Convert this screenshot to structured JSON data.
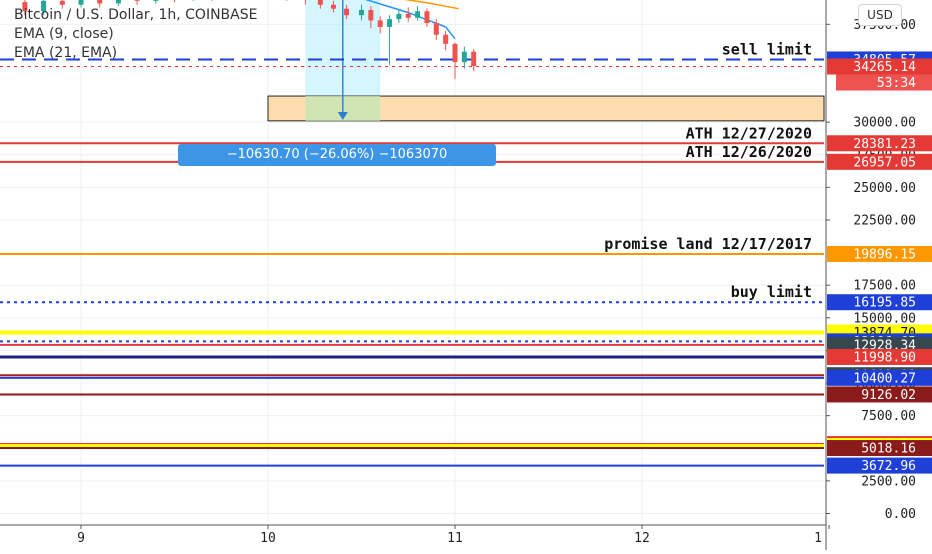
{
  "legend": {
    "title": "Bitcoin / U.S. Dollar, 1h, COINBASE",
    "ema9": "EMA (9, close)",
    "ema21": "EMA (21, EMA)"
  },
  "currency_button": "USD",
  "measure_label": "−10630.70 (−26.06%) −1063070",
  "colors": {
    "up": "#26a69a",
    "down": "#ef5350",
    "red": "#e53935",
    "dark_red": "#b71c1c",
    "blue": "#1e3fd8",
    "navy": "#1a237e",
    "orange": "#ff9800",
    "yellow": "#ffff00",
    "dark_gray": "#37474f",
    "maroon": "#8b1a1a"
  },
  "chart_data": {
    "type": "line",
    "title": "Bitcoin / U.S. Dollar, 1h, COINBASE",
    "xlabel": "",
    "ylabel": "",
    "ylim": [
      -1200,
      40000
    ],
    "grid": true,
    "x_ticks": [
      "9",
      "10",
      "11",
      "12",
      "1"
    ],
    "y_ticks": [
      {
        "value": 37500,
        "label": "37500.00"
      },
      {
        "value": 30000,
        "label": "30000.00"
      },
      {
        "value": 27500,
        "label": "27500.00"
      },
      {
        "value": 25000,
        "label": "25000.00"
      },
      {
        "value": 22500,
        "label": "22500.00"
      },
      {
        "value": 17500,
        "label": "17500.00"
      },
      {
        "value": 15000,
        "label": "15000.00"
      },
      {
        "value": 12500,
        "label": "12500.00"
      },
      {
        "value": 10000,
        "label": "10000.00"
      },
      {
        "value": 7500,
        "label": "7500.00"
      },
      {
        "value": 2500,
        "label": "2500.00"
      },
      {
        "value": 0,
        "label": "0.00"
      }
    ],
    "horizontal_lines": [
      {
        "price": 34805.57,
        "label": "34805.57",
        "color": "blue",
        "style": "dashed",
        "tag": "blue",
        "annotation": "sell limit"
      },
      {
        "price": 34265.14,
        "label": "34265.14",
        "color": "red",
        "style": "dotted",
        "tag": "red"
      },
      {
        "price": 28381.23,
        "label": "28381.23",
        "color": "red",
        "style": "solid",
        "tag": "red",
        "annotation": "ATH 12/27/2020"
      },
      {
        "price": 26957.05,
        "label": "26957.05",
        "color": "red",
        "style": "solid",
        "tag": "red",
        "annotation": "ATH 12/26/2020"
      },
      {
        "price": 19896.15,
        "label": "19896.15",
        "color": "orange",
        "style": "solid",
        "tag": "orange",
        "annotation": "promise land 12/17/2017"
      },
      {
        "price": 16195.85,
        "label": "16195.85",
        "color": "blue",
        "style": "dotted",
        "tag": "blue",
        "annotation": "buy limit"
      },
      {
        "price": 13874.7,
        "label": "13874.70",
        "color": "yellow",
        "style": "solid",
        "tag": "yellow"
      },
      {
        "price": 13196.65,
        "label": "13196.65",
        "color": "blue",
        "style": "dotted",
        "tag": "blue"
      },
      {
        "price": 12928.34,
        "label": "12928.34",
        "color": "red",
        "style": "solid",
        "tag": "dark_gray"
      },
      {
        "price": 11998.9,
        "label": "11998.90",
        "color": "navy",
        "style": "solid",
        "tag": "red"
      },
      {
        "price": 10602.01,
        "label": "10602.01",
        "color": "dark_red",
        "style": "solid",
        "tag": "dark_gray"
      },
      {
        "price": 10400.27,
        "label": "10400.27",
        "color": "blue",
        "style": "solid",
        "tag": "blue"
      },
      {
        "price": 9126.02,
        "label": "9126.02",
        "color": "maroon",
        "style": "solid",
        "tag": "maroon"
      },
      {
        "price": 5322.98,
        "label": "5322.98",
        "color": "red",
        "style": "solid",
        "tag": "red"
      },
      {
        "price": 5175.44,
        "label": "5175.44",
        "color": "yellow",
        "style": "solid",
        "tag": "yellow"
      },
      {
        "price": 5018.16,
        "label": "5018.16",
        "color": "maroon",
        "style": "solid",
        "tag": "maroon"
      },
      {
        "price": 3672.96,
        "label": "3672.96",
        "color": "blue",
        "style": "solid",
        "tag": "blue"
      }
    ],
    "countdown_label": "53:34",
    "series": [
      {
        "name": "EMA (9, close)",
        "color": "#2196f3",
        "points": [
          [
            9.5,
            39500
          ],
          [
            9.9,
            39950
          ],
          [
            10.2,
            40100
          ],
          [
            10.5,
            39500
          ],
          [
            10.75,
            38400
          ],
          [
            10.95,
            37300
          ],
          [
            11.0,
            36400
          ]
        ]
      },
      {
        "name": "EMA (21, EMA)",
        "color": "#ff9800",
        "points": [
          [
            9.3,
            39400
          ],
          [
            9.7,
            39900
          ],
          [
            10.0,
            40100
          ],
          [
            10.3,
            40000
          ],
          [
            10.6,
            39700
          ],
          [
            10.85,
            39150
          ],
          [
            11.02,
            38700
          ]
        ]
      }
    ],
    "candles": [
      {
        "x": 8.7,
        "o": 39200,
        "c": 38500,
        "h": 39600,
        "l": 38200
      },
      {
        "x": 8.8,
        "o": 38500,
        "c": 39300,
        "h": 39800,
        "l": 38200
      },
      {
        "x": 8.9,
        "o": 39300,
        "c": 39000,
        "h": 39700,
        "l": 38700
      },
      {
        "x": 9.0,
        "o": 39000,
        "c": 39600,
        "h": 39900,
        "l": 38800
      },
      {
        "x": 9.1,
        "o": 39600,
        "c": 39100,
        "h": 39900,
        "l": 38800
      },
      {
        "x": 9.2,
        "o": 39100,
        "c": 39700,
        "h": 40000,
        "l": 38900
      },
      {
        "x": 9.3,
        "o": 39700,
        "c": 39300,
        "h": 40000,
        "l": 39000
      },
      {
        "x": 9.4,
        "o": 39300,
        "c": 39800,
        "h": 40000,
        "l": 39100
      },
      {
        "x": 9.5,
        "o": 39800,
        "c": 39500,
        "h": 40000,
        "l": 39200
      },
      {
        "x": 9.6,
        "o": 39500,
        "c": 39900,
        "h": 40000,
        "l": 39300
      },
      {
        "x": 9.7,
        "o": 39900,
        "c": 39600,
        "h": 40000,
        "l": 39300
      },
      {
        "x": 9.8,
        "o": 39600,
        "c": 39950,
        "h": 40000,
        "l": 39400
      },
      {
        "x": 9.9,
        "o": 39950,
        "c": 39700,
        "h": 40000,
        "l": 39500
      },
      {
        "x": 10.0,
        "o": 39700,
        "c": 39900,
        "h": 40000,
        "l": 39500
      },
      {
        "x": 10.1,
        "o": 39900,
        "c": 39600,
        "h": 40000,
        "l": 39300
      },
      {
        "x": 10.2,
        "o": 39600,
        "c": 39400,
        "h": 39800,
        "l": 39000
      },
      {
        "x": 10.28,
        "o": 39400,
        "c": 39000,
        "h": 39600,
        "l": 38700
      },
      {
        "x": 10.35,
        "o": 39000,
        "c": 38700,
        "h": 39300,
        "l": 38400
      },
      {
        "x": 10.42,
        "o": 38700,
        "c": 38200,
        "h": 39000,
        "l": 37900
      },
      {
        "x": 10.5,
        "o": 38200,
        "c": 38600,
        "h": 39000,
        "l": 37800
      },
      {
        "x": 10.55,
        "o": 38600,
        "c": 37800,
        "h": 38900,
        "l": 37200
      },
      {
        "x": 10.6,
        "o": 37800,
        "c": 37300,
        "h": 38100,
        "l": 36800
      },
      {
        "x": 10.65,
        "o": 37300,
        "c": 37900,
        "h": 38200,
        "l": 34400
      },
      {
        "x": 10.7,
        "o": 37900,
        "c": 38300,
        "h": 38700,
        "l": 37600
      },
      {
        "x": 10.75,
        "o": 38300,
        "c": 38000,
        "h": 38800,
        "l": 37700
      },
      {
        "x": 10.8,
        "o": 38000,
        "c": 38500,
        "h": 38900,
        "l": 37800
      },
      {
        "x": 10.85,
        "o": 38500,
        "c": 37600,
        "h": 38700,
        "l": 37300
      },
      {
        "x": 10.9,
        "o": 37600,
        "c": 36700,
        "h": 37900,
        "l": 36300
      },
      {
        "x": 10.95,
        "o": 36700,
        "c": 36000,
        "h": 37000,
        "l": 35500
      },
      {
        "x": 11.0,
        "o": 36000,
        "c": 34600,
        "h": 36100,
        "l": 33300
      },
      {
        "x": 11.05,
        "o": 34600,
        "c": 35400,
        "h": 35800,
        "l": 34100
      },
      {
        "x": 11.1,
        "o": 35400,
        "c": 34300,
        "h": 35600,
        "l": 33900
      }
    ],
    "measure_region": {
      "x_start": 10.2,
      "x_end": 10.6,
      "price_from": 40800,
      "price_to": 30169
    },
    "zone": {
      "x_start": 10.0,
      "price_top": 32000,
      "price_bottom": 30100
    }
  }
}
